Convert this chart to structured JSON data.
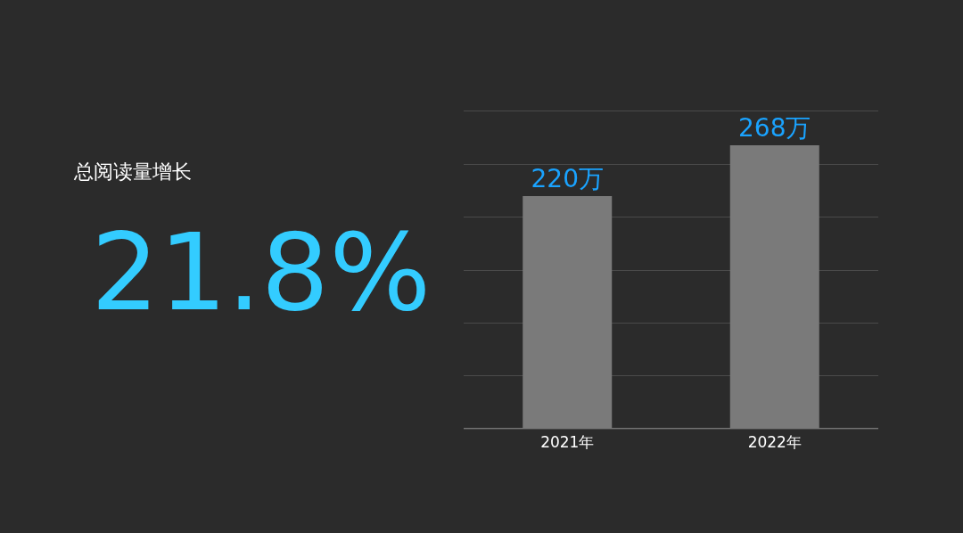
{
  "chart_data": {
    "type": "bar",
    "categories": [
      "2021年",
      "2022年"
    ],
    "values": [
      220,
      268
    ],
    "value_labels": [
      "220万",
      "268万"
    ],
    "color": "#7a7a7a",
    "ylim": [
      0,
      300
    ],
    "yticks": [
      0,
      {
        "value": 50,
        "label": null
      },
      {
        "value": 100,
        "label": null
      },
      {
        "value": 150,
        "label": null
      },
      {
        "value": 200,
        "label": null
      },
      {
        "value": 250,
        "label": null
      },
      {
        "value": 300,
        "label": null
      }
    ],
    "grid": "y",
    "tick_labels": "x",
    "legend": false,
    "annotations": [
      "总阅读量增长",
      "21.8%"
    ]
  }
}
